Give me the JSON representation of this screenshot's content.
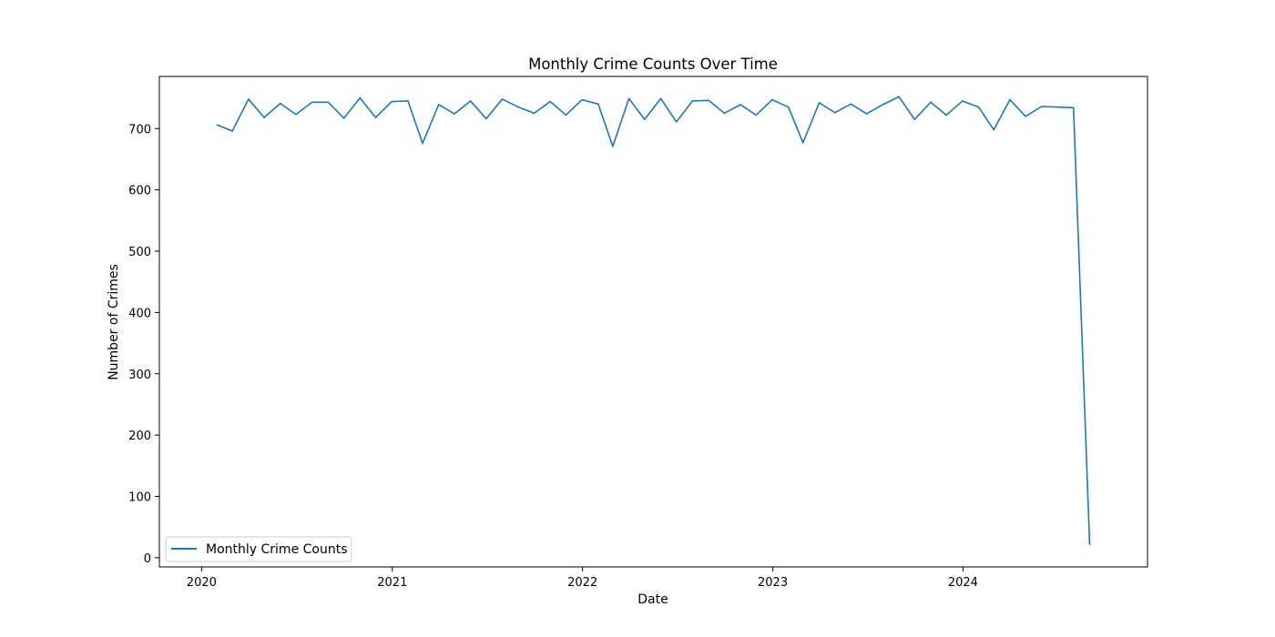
{
  "chart_data": {
    "type": "line",
    "title": "Monthly Crime Counts Over Time",
    "xlabel": "Date",
    "ylabel": "Number of Crimes",
    "x_ticks": [
      "2020",
      "2021",
      "2022",
      "2023",
      "2024"
    ],
    "x_tick_dates": [
      "2020-01-01",
      "2021-01-01",
      "2022-01-01",
      "2023-01-01",
      "2024-01-01"
    ],
    "y_ticks": [
      0,
      100,
      200,
      300,
      400,
      500,
      600,
      700
    ],
    "xlim": [
      "2019-10-12",
      "2024-12-20"
    ],
    "ylim": [
      -15,
      785
    ],
    "grid": false,
    "legend_position": "lower-left",
    "series": [
      {
        "name": "Monthly Crime Counts",
        "color": "#1f77b4",
        "x": [
          "2020-01-31",
          "2020-02-29",
          "2020-03-31",
          "2020-04-30",
          "2020-05-31",
          "2020-06-30",
          "2020-07-31",
          "2020-08-31",
          "2020-09-30",
          "2020-10-31",
          "2020-11-30",
          "2020-12-31",
          "2021-01-31",
          "2021-02-28",
          "2021-03-31",
          "2021-04-30",
          "2021-05-31",
          "2021-06-30",
          "2021-07-31",
          "2021-08-31",
          "2021-09-30",
          "2021-10-31",
          "2021-11-30",
          "2021-12-31",
          "2022-01-31",
          "2022-02-28",
          "2022-03-31",
          "2022-04-30",
          "2022-05-31",
          "2022-06-30",
          "2022-07-31",
          "2022-08-31",
          "2022-09-30",
          "2022-10-31",
          "2022-11-30",
          "2022-12-31",
          "2023-01-31",
          "2023-02-28",
          "2023-03-31",
          "2023-04-30",
          "2023-05-31",
          "2023-06-30",
          "2023-07-31",
          "2023-08-31",
          "2023-09-30",
          "2023-10-31",
          "2023-11-30",
          "2023-12-31",
          "2024-01-31",
          "2024-02-29",
          "2024-03-31",
          "2024-04-30",
          "2024-05-31",
          "2024-06-30",
          "2024-07-31",
          "2024-08-31"
        ],
        "values": [
          706,
          696,
          748,
          718,
          741,
          723,
          743,
          743,
          717,
          750,
          718,
          744,
          745,
          676,
          739,
          724,
          745,
          716,
          748,
          735,
          725,
          744,
          722,
          747,
          740,
          671,
          749,
          715,
          749,
          711,
          745,
          746,
          725,
          739,
          722,
          747,
          735,
          677,
          742,
          726,
          740,
          724,
          739,
          752,
          715,
          743,
          722,
          745,
          735,
          698,
          747,
          720,
          736,
          735,
          734,
          22
        ]
      }
    ]
  }
}
